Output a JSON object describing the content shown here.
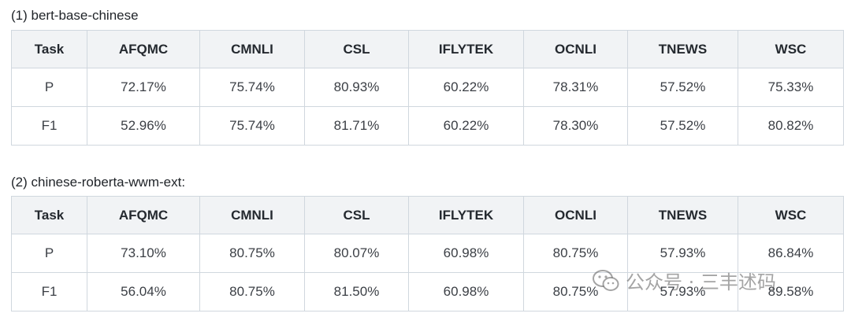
{
  "sections": [
    {
      "caption": "(1) bert-base-chinese",
      "headers": [
        "Task",
        "AFQMC",
        "CMNLI",
        "CSL",
        "IFLYTEK",
        "OCNLI",
        "TNEWS",
        "WSC"
      ],
      "rows": [
        [
          "P",
          "72.17%",
          "75.74%",
          "80.93%",
          "60.22%",
          "78.31%",
          "57.52%",
          "75.33%"
        ],
        [
          "F1",
          "52.96%",
          "75.74%",
          "81.71%",
          "60.22%",
          "78.30%",
          "57.52%",
          "80.82%"
        ]
      ]
    },
    {
      "caption": "(2) chinese-roberta-wwm-ext:",
      "headers": [
        "Task",
        "AFQMC",
        "CMNLI",
        "CSL",
        "IFLYTEK",
        "OCNLI",
        "TNEWS",
        "WSC"
      ],
      "rows": [
        [
          "P",
          "73.10%",
          "80.75%",
          "80.07%",
          "60.98%",
          "80.75%",
          "57.93%",
          "86.84%"
        ],
        [
          "F1",
          "56.04%",
          "80.75%",
          "81.50%",
          "60.98%",
          "80.75%",
          "57.93%",
          "89.58%"
        ]
      ]
    }
  ],
  "watermark": {
    "text": "公众号 · 三丰述码",
    "icon": "wechat-icon"
  }
}
